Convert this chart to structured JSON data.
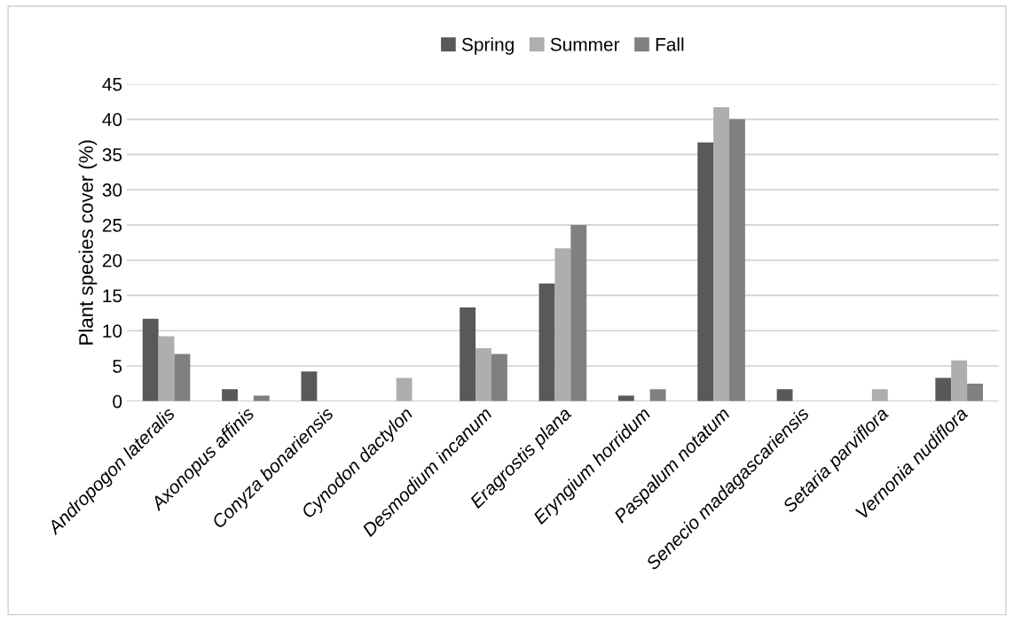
{
  "chart_data": {
    "type": "bar",
    "ylabel": "Plant species cover (%)",
    "categories": [
      "Andropogon lateralis",
      "Axonopus affinis",
      "Conyza bonariensis",
      "Cynodon dactylon",
      "Desmodium incanum",
      "Eragrostis plana",
      "Eryngium horridum",
      "Paspalum notatum",
      "Senecio madagascariensis",
      "Setaria parviflora",
      "Vernonia nudiflora"
    ],
    "series": [
      {
        "name": "Spring",
        "color": "#595959",
        "values": [
          11.7,
          1.7,
          4.2,
          0,
          13.3,
          16.7,
          0.8,
          36.7,
          1.7,
          0,
          3.3
        ]
      },
      {
        "name": "Summer",
        "color": "#aeaeae",
        "values": [
          9.2,
          0,
          0,
          3.3,
          7.5,
          21.7,
          0,
          41.7,
          0,
          1.7,
          5.8
        ]
      },
      {
        "name": "Fall",
        "color": "#808080",
        "values": [
          6.7,
          0.8,
          0,
          0,
          6.7,
          25,
          1.7,
          40,
          0,
          0,
          2.5
        ]
      }
    ],
    "ylim": [
      0,
      45
    ],
    "yticks": [
      0,
      5,
      10,
      15,
      20,
      25,
      30,
      35,
      40,
      45
    ],
    "grid": "y",
    "legend": "top"
  }
}
